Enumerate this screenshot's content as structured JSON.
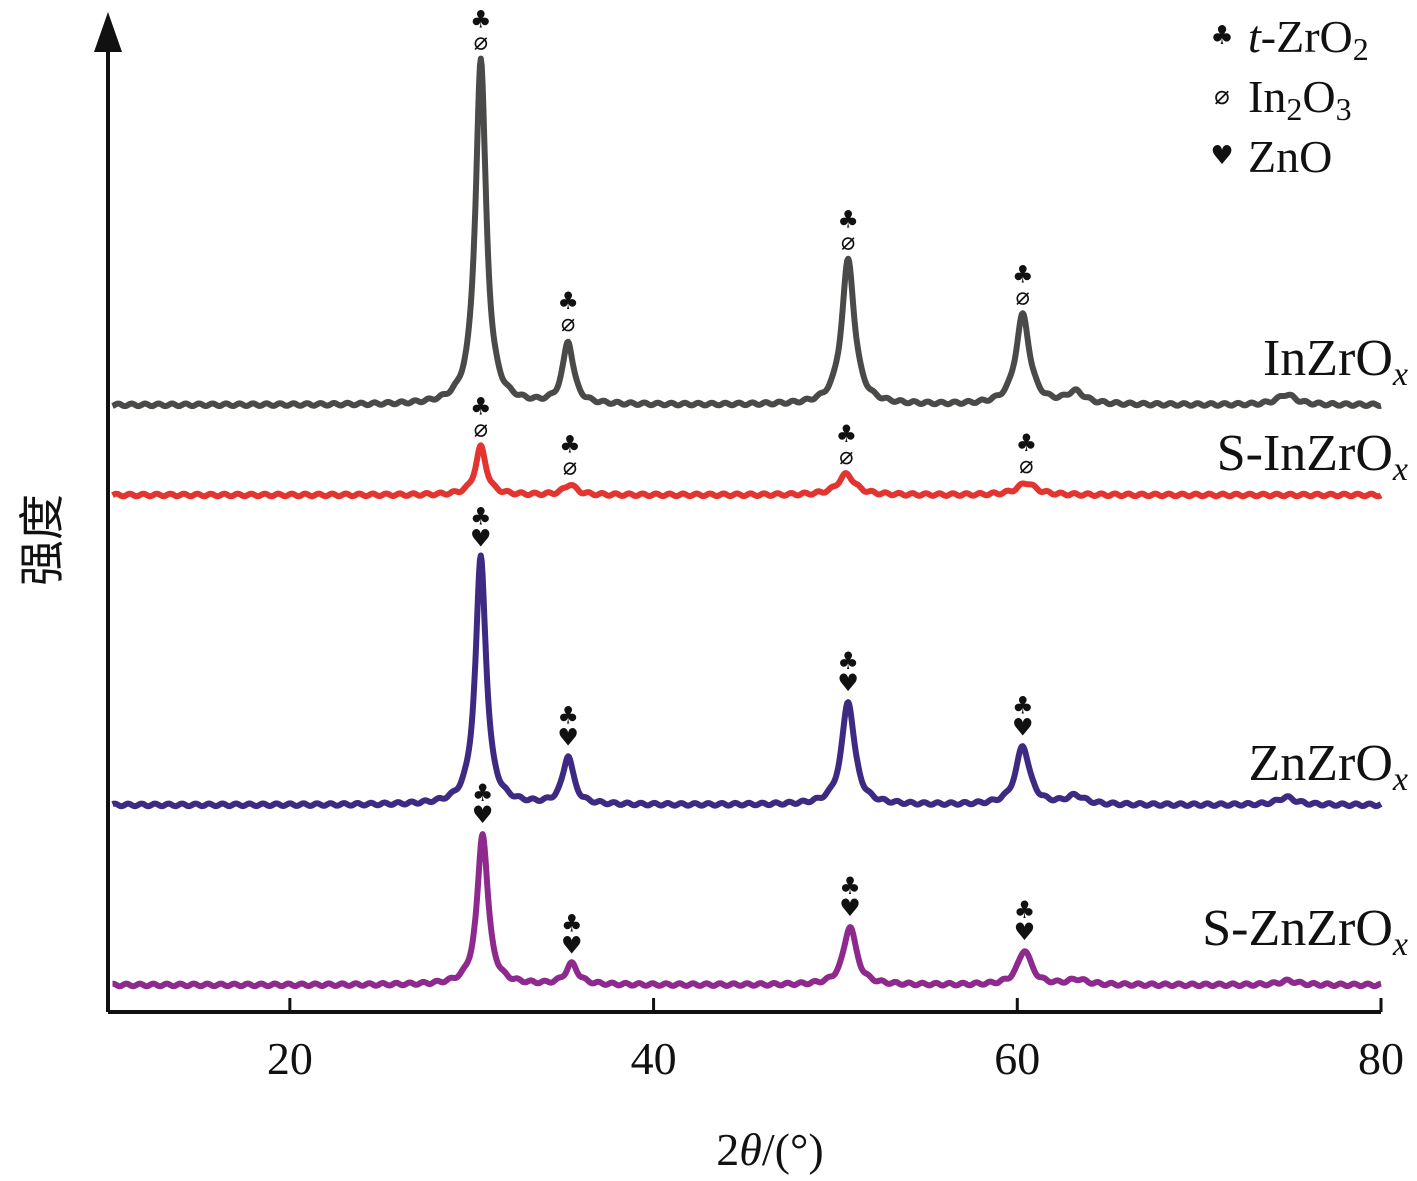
{
  "chart_data": {
    "type": "line",
    "title": "",
    "xlabel": "2θ/(°)",
    "ylabel": "强度",
    "xlim": [
      10,
      80
    ],
    "xticks": [
      20,
      40,
      60,
      80
    ],
    "yticks": [],
    "grid": false,
    "legend_position": "top-right",
    "legend": [
      {
        "symbol": "♣",
        "icon": "club-icon",
        "label": "t-ZrO2",
        "rich": [
          "t",
          "-ZrO",
          "2"
        ]
      },
      {
        "symbol": "⌀",
        "icon": "slashed-circle-icon",
        "label": "In2O3",
        "rich": [
          "In",
          "2",
          "O",
          "3"
        ]
      },
      {
        "symbol": "♥",
        "icon": "heart-icon",
        "label": "ZnO",
        "rich": [
          "ZnO"
        ]
      }
    ],
    "series": [
      {
        "name": "InZrOx",
        "label_main": "InZrO",
        "label_sub": "x",
        "color": "#4a4b48",
        "baseline": 0.0,
        "peaks": [
          {
            "x": 30.5,
            "h": 1.0,
            "w": 0.35,
            "markers": [
              "♣",
              "⌀"
            ]
          },
          {
            "x": 35.3,
            "h": 0.18,
            "w": 0.35,
            "markers": [
              "♣",
              "⌀"
            ]
          },
          {
            "x": 50.7,
            "h": 0.42,
            "w": 0.42,
            "markers": [
              "♣",
              "⌀"
            ]
          },
          {
            "x": 60.3,
            "h": 0.26,
            "w": 0.45,
            "markers": [
              "♣",
              "⌀"
            ]
          },
          {
            "x": 63.2,
            "h": 0.035,
            "w": 0.6,
            "markers": []
          },
          {
            "x": 74.8,
            "h": 0.03,
            "w": 0.6,
            "markers": []
          }
        ]
      },
      {
        "name": "S-InZrOx",
        "label_main": "S-InZrO",
        "label_sub": "x",
        "color": "#e3342f",
        "baseline": 0.0,
        "peaks": [
          {
            "x": 30.5,
            "h": 0.14,
            "w": 0.35,
            "markers": [
              "♣",
              "⌀"
            ]
          },
          {
            "x": 35.4,
            "h": 0.03,
            "w": 0.4,
            "markers": [
              "♣",
              "⌀"
            ]
          },
          {
            "x": 50.6,
            "h": 0.06,
            "w": 0.55,
            "markers": [
              "♣",
              "⌀"
            ]
          },
          {
            "x": 60.5,
            "h": 0.035,
            "w": 0.6,
            "markers": [
              "♣",
              "⌀"
            ]
          }
        ]
      },
      {
        "name": "ZnZrOx",
        "label_main": "ZnZrO",
        "label_sub": "x",
        "color": "#3e2a83",
        "baseline": 0.0,
        "peaks": [
          {
            "x": 30.5,
            "h": 0.72,
            "w": 0.35,
            "markers": [
              "♣",
              "♥"
            ]
          },
          {
            "x": 35.3,
            "h": 0.14,
            "w": 0.35,
            "markers": [
              "♣",
              "♥"
            ]
          },
          {
            "x": 50.7,
            "h": 0.3,
            "w": 0.42,
            "markers": [
              "♣",
              "♥"
            ]
          },
          {
            "x": 60.3,
            "h": 0.17,
            "w": 0.45,
            "markers": [
              "♣",
              "♥"
            ]
          },
          {
            "x": 63.2,
            "h": 0.025,
            "w": 0.6,
            "markers": []
          },
          {
            "x": 74.8,
            "h": 0.022,
            "w": 0.6,
            "markers": []
          }
        ]
      },
      {
        "name": "S-ZnZrOx",
        "label_main": "S-ZnZrO",
        "label_sub": "x",
        "color": "#8e2a8e",
        "baseline": 0.0,
        "peaks": [
          {
            "x": 30.6,
            "h": 0.44,
            "w": 0.35,
            "markers": [
              "♣",
              "♥"
            ]
          },
          {
            "x": 35.5,
            "h": 0.06,
            "w": 0.4,
            "markers": [
              "♣",
              "♥"
            ]
          },
          {
            "x": 50.8,
            "h": 0.17,
            "w": 0.42,
            "markers": [
              "♣",
              "♥"
            ]
          },
          {
            "x": 60.4,
            "h": 0.1,
            "w": 0.45,
            "markers": [
              "♣",
              "♥"
            ]
          },
          {
            "x": 63.3,
            "h": 0.015,
            "w": 0.6,
            "markers": []
          },
          {
            "x": 74.9,
            "h": 0.012,
            "w": 0.6,
            "markers": []
          }
        ]
      }
    ]
  }
}
